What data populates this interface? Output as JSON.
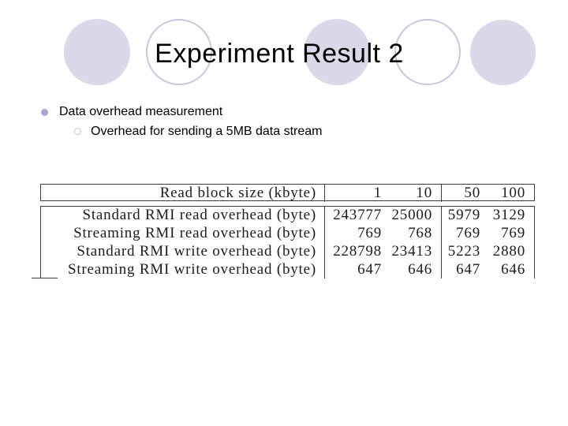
{
  "slide": {
    "title": "Experiment Result 2",
    "bullet": "Data overhead measurement",
    "sub_bullet": "Overhead for sending a 5MB data stream"
  },
  "table": {
    "header": {
      "label": "Read block size (kbyte)",
      "values": [
        "1",
        "10",
        "50",
        "100"
      ]
    },
    "rows": [
      {
        "label": "Standard RMI read overhead (byte)",
        "values": [
          "243777",
          "25000",
          "5979",
          "3129"
        ]
      },
      {
        "label": "Streaming RMI read overhead (byte)",
        "values": [
          "769",
          "768",
          "769",
          "769"
        ]
      },
      {
        "label": "Standard RMI write overhead (byte)",
        "values": [
          "228798",
          "23413",
          "5223",
          "2880"
        ]
      },
      {
        "label": "Streaming RMI write overhead (byte)",
        "values": [
          "647",
          "646",
          "647",
          "646"
        ]
      }
    ]
  },
  "decor": {
    "circle_styles": [
      "filled",
      "outline",
      "filled",
      "outline",
      "filled"
    ]
  },
  "colors": {
    "circle_fill": "#D9D9E9",
    "circle_outline": "#C7C9DE",
    "bullet_fill": "#A6A6CE",
    "subbullet_outline": "#C4C4D4",
    "table_line": "#3d3d3d",
    "text": "#111111"
  }
}
